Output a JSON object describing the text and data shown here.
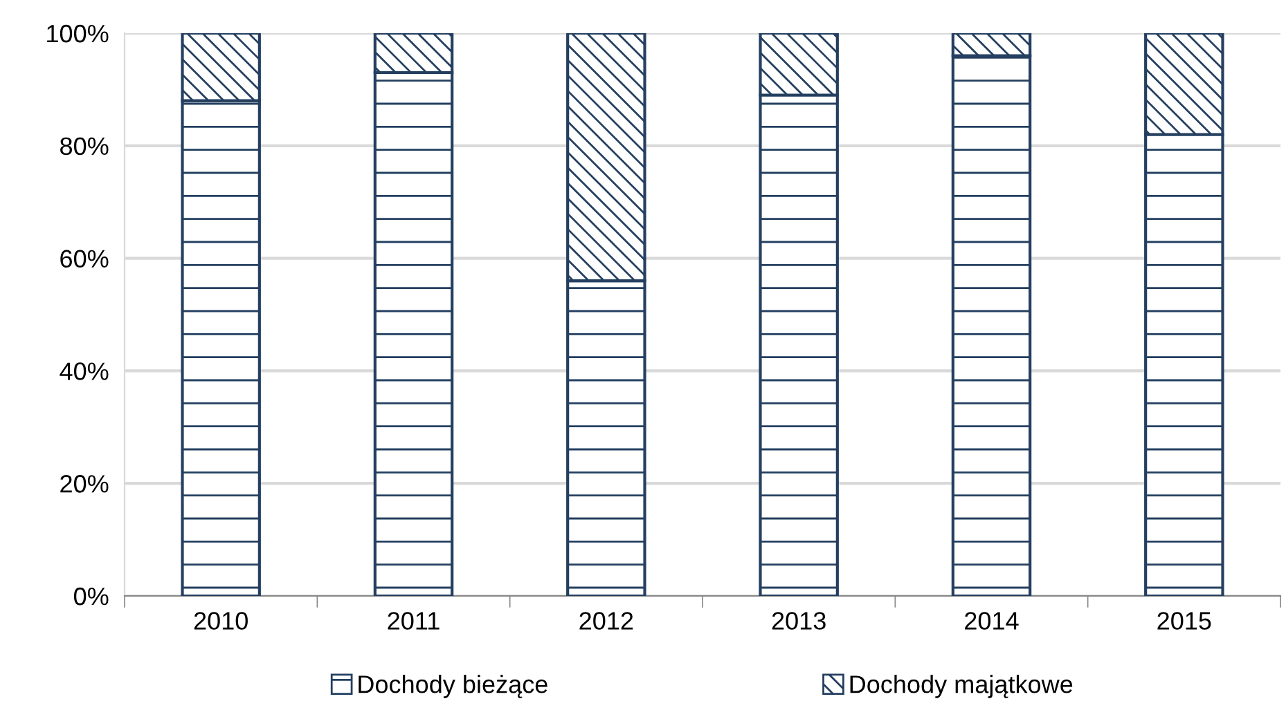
{
  "chart_data": {
    "type": "bar",
    "stacked": true,
    "categories": [
      "2010",
      "2011",
      "2012",
      "2013",
      "2014",
      "2015"
    ],
    "series": [
      {
        "name": "Dochody bieżące",
        "color": "#243f60",
        "values": [
          88,
          93,
          56,
          89,
          96,
          82
        ]
      },
      {
        "name": "Dochody majątkowe",
        "color": "#243f60",
        "values": [
          12,
          7,
          44,
          11,
          4,
          18
        ]
      }
    ],
    "ylim": [
      0,
      100
    ],
    "yticks": [
      {
        "value": 0,
        "label": "0%"
      },
      {
        "value": 20,
        "label": "20%"
      },
      {
        "value": 40,
        "label": "40%"
      },
      {
        "value": 60,
        "label": "60%"
      },
      {
        "value": 80,
        "label": "80%"
      },
      {
        "value": 100,
        "label": "100%"
      }
    ],
    "grid": "y",
    "legend": "bottom"
  }
}
